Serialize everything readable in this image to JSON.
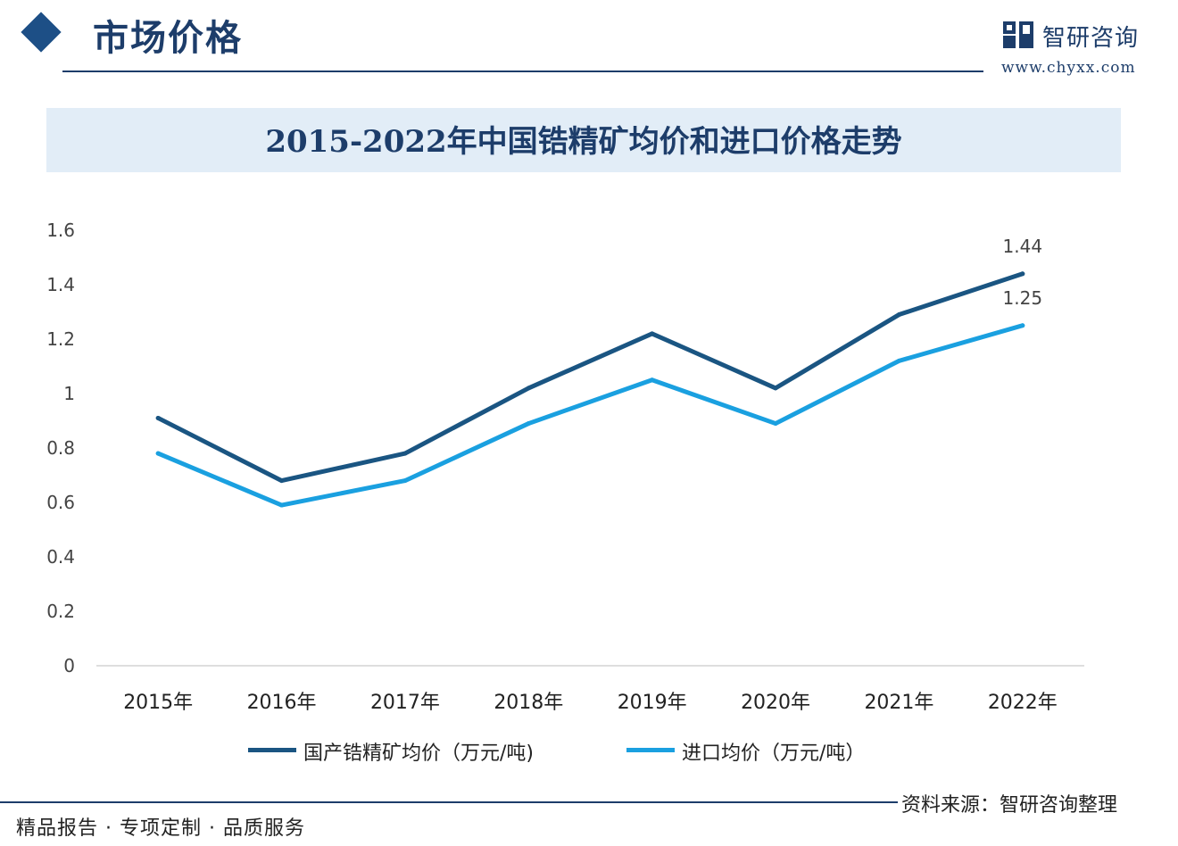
{
  "header": {
    "title": "市场价格"
  },
  "brand": {
    "name": "智研咨询",
    "url": "www.chyxx.com"
  },
  "chart_data": {
    "type": "line",
    "title": "2015-2022年中国锆精矿均价和进口价格走势",
    "categories": [
      "2015年",
      "2016年",
      "2017年",
      "2018年",
      "2019年",
      "2020年",
      "2021年",
      "2022年"
    ],
    "ylim": [
      0,
      1.6
    ],
    "yticks": [
      "0",
      "0.2",
      "0.4",
      "0.6",
      "0.8",
      "1",
      "1.2",
      "1.4",
      "1.6"
    ],
    "grid": false,
    "legend_position": "bottom",
    "series": [
      {
        "name": "国产锆精矿均价（万元/吨)",
        "color": "#1a5582",
        "values": [
          0.91,
          0.68,
          0.78,
          1.02,
          1.22,
          1.02,
          1.29,
          1.44
        ],
        "end_label": "1.44"
      },
      {
        "name": "进口均价（万元/吨）",
        "color": "#1aa0e0",
        "values": [
          0.78,
          0.59,
          0.68,
          0.89,
          1.05,
          0.89,
          1.12,
          1.25
        ],
        "end_label": "1.25"
      }
    ]
  },
  "footer": {
    "left_text": "精品报告 · 专项定制 · 品质服务",
    "source": "资料来源：智研咨询整理"
  }
}
